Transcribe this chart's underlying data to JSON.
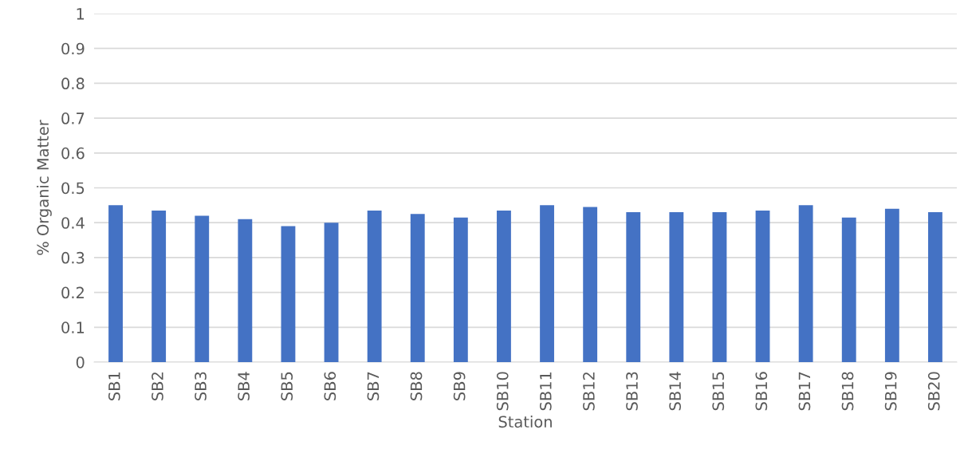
{
  "chart_data": {
    "type": "bar",
    "xlabel": "Station",
    "ylabel": "% Organic Matter",
    "categories": [
      "SB1",
      "SB2",
      "SB3",
      "SB4",
      "SB5",
      "SB6",
      "SB7",
      "SB8",
      "SB9",
      "SB10",
      "SB11",
      "SB12",
      "SB13",
      "SB14",
      "SB15",
      "SB16",
      "SB17",
      "SB18",
      "SB19",
      "SB20"
    ],
    "values": [
      0.45,
      0.435,
      0.42,
      0.41,
      0.39,
      0.4,
      0.435,
      0.425,
      0.415,
      0.435,
      0.45,
      0.445,
      0.43,
      0.43,
      0.43,
      0.435,
      0.45,
      0.415,
      0.44,
      0.43
    ],
    "color": "#4472c4",
    "ylim": [
      0,
      1
    ],
    "yticks": [
      0,
      0.1,
      0.2,
      0.3,
      0.4,
      0.5,
      0.6,
      0.7,
      0.8,
      0.9,
      1
    ],
    "grid": "y"
  }
}
